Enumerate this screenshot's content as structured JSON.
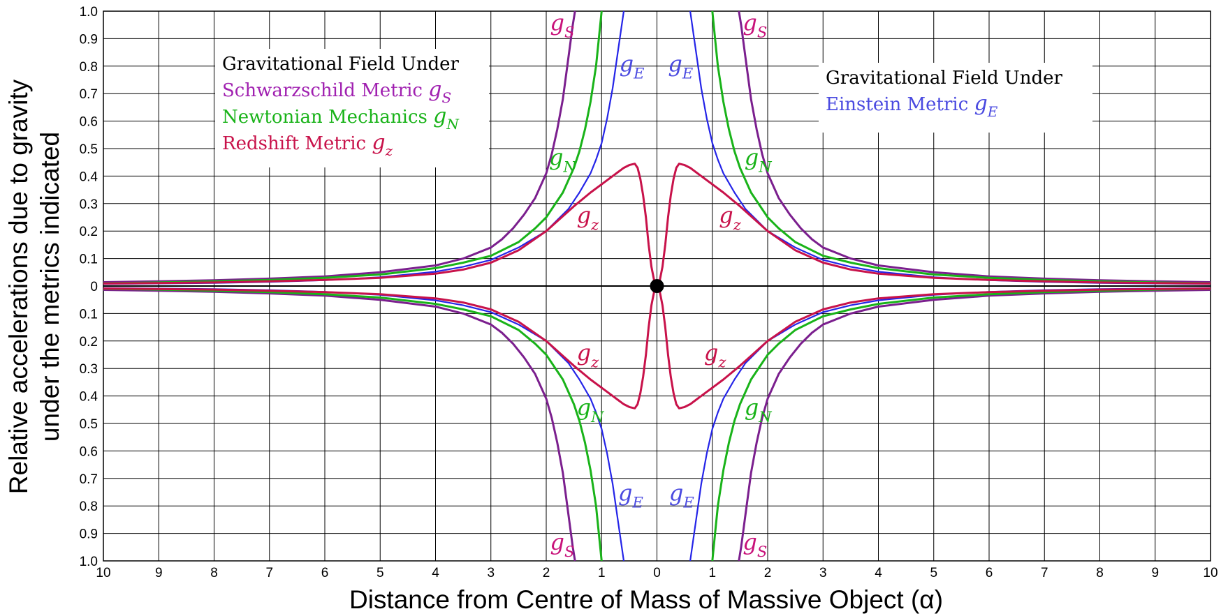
{
  "chart_data": {
    "type": "line",
    "title": "",
    "xlabel": "Distance from Centre of Mass of Massive Object (α)",
    "ylabel_lines": [
      "Relative accelerations due to gravity",
      "under the metrics indicated"
    ],
    "x_ticks": [
      "10",
      "9",
      "8",
      "7",
      "6",
      "5",
      "4",
      "3",
      "2",
      "1",
      "0",
      "1",
      "2",
      "3",
      "4",
      "5",
      "6",
      "7",
      "8",
      "9",
      "10"
    ],
    "y_ticks_upper": [
      "1.0",
      "0.9",
      "0.8",
      "0.7",
      "0.6",
      "0.5",
      "0.4",
      "0.3",
      "0.2",
      "0.1",
      "0"
    ],
    "y_ticks_lower": [
      "0.1",
      "0.2",
      "0.3",
      "0.4",
      "0.5",
      "0.6",
      "0.7",
      "0.8",
      "0.9",
      "1.0"
    ],
    "xlim": [
      -10,
      10
    ],
    "ylim": [
      -1.0,
      1.0
    ],
    "grid": true,
    "origin_marker": true,
    "colors": {
      "schwarzschild": "#7b1f8e",
      "newtonian": "#19b319",
      "einstein": "#2424e8",
      "redshift": "#c8124a"
    },
    "legend_left": {
      "heading": "Gravitational Field Under",
      "items": [
        {
          "text": "Schwarzschild Metric",
          "symbol": "g",
          "sub": "S",
          "color": "#a020b0"
        },
        {
          "text": "Newtonian Mechanics",
          "symbol": "g",
          "sub": "N",
          "color": "#19b319"
        },
        {
          "text": "Redshift Metric",
          "symbol": "g",
          "sub": "z",
          "color": "#c8124a"
        }
      ]
    },
    "legend_right": {
      "heading": "Gravitational Field Under",
      "items": [
        {
          "text": "Einstein Metric",
          "symbol": "g",
          "sub": "E",
          "color": "#4a4ae0"
        }
      ]
    },
    "curve_labels": [
      {
        "sym": "g",
        "sub": "S",
        "color": "#c8127a",
        "x": -1.93,
        "y": 0.93
      },
      {
        "sym": "g",
        "sub": "S",
        "color": "#c8127a",
        "x": 1.55,
        "y": 0.93
      },
      {
        "sym": "g",
        "sub": "E",
        "color": "#4a4ae0",
        "x": -0.68,
        "y": 0.78
      },
      {
        "sym": "g",
        "sub": "E",
        "color": "#4a4ae0",
        "x": 0.2,
        "y": 0.78
      },
      {
        "sym": "g",
        "sub": "N",
        "color": "#19b319",
        "x": -1.95,
        "y": 0.44
      },
      {
        "sym": "g",
        "sub": "N",
        "color": "#19b319",
        "x": 1.58,
        "y": 0.44
      },
      {
        "sym": "g",
        "sub": "z",
        "color": "#c8124a",
        "x": -1.45,
        "y": 0.23
      },
      {
        "sym": "g",
        "sub": "z",
        "color": "#c8124a",
        "x": 1.12,
        "y": 0.23
      },
      {
        "sym": "g",
        "sub": "z",
        "color": "#c8124a",
        "x": -1.45,
        "y": -0.27
      },
      {
        "sym": "g",
        "sub": "z",
        "color": "#c8124a",
        "x": 0.85,
        "y": -0.27
      },
      {
        "sym": "g",
        "sub": "N",
        "color": "#19b319",
        "x": -1.45,
        "y": -0.47
      },
      {
        "sym": "g",
        "sub": "N",
        "color": "#19b319",
        "x": 1.58,
        "y": -0.47
      },
      {
        "sym": "g",
        "sub": "E",
        "color": "#4a4ae0",
        "x": -0.7,
        "y": -0.78
      },
      {
        "sym": "g",
        "sub": "E",
        "color": "#4a4ae0",
        "x": 0.22,
        "y": -0.78
      },
      {
        "sym": "g",
        "sub": "S",
        "color": "#c8127a",
        "x": -1.93,
        "y": -0.96
      },
      {
        "sym": "g",
        "sub": "S",
        "color": "#c8127a",
        "x": 1.55,
        "y": -0.96
      }
    ],
    "series": [
      {
        "name": "Schwarzschild Metric gS",
        "key": "schwarzschild",
        "x": [
          1.48,
          1.52,
          1.6,
          1.7,
          1.8,
          1.9,
          2.0,
          2.2,
          2.4,
          2.6,
          2.8,
          3.0,
          3.5,
          4.0,
          5.0,
          6.0,
          7.0,
          8.0,
          9.0,
          10.0
        ],
        "y": [
          1.0,
          0.95,
          0.83,
          0.68,
          0.57,
          0.48,
          0.41,
          0.32,
          0.26,
          0.21,
          0.17,
          0.14,
          0.1,
          0.075,
          0.05,
          0.035,
          0.027,
          0.021,
          0.017,
          0.014
        ]
      },
      {
        "name": "Newtonian Mechanics gN",
        "key": "newtonian",
        "x": [
          1.0,
          1.05,
          1.1,
          1.2,
          1.3,
          1.4,
          1.5,
          1.7,
          2.0,
          2.2,
          2.5,
          3.0,
          3.5,
          4.0,
          5.0,
          6.0,
          7.0,
          8.0,
          9.0,
          10.0
        ],
        "y": [
          1.0,
          0.9,
          0.8,
          0.67,
          0.57,
          0.49,
          0.43,
          0.34,
          0.25,
          0.21,
          0.16,
          0.11,
          0.085,
          0.065,
          0.042,
          0.03,
          0.022,
          0.017,
          0.013,
          0.01
        ]
      },
      {
        "name": "Einstein Metric gE",
        "key": "einstein",
        "x": [
          0.6,
          0.7,
          0.8,
          0.9,
          1.0,
          1.1,
          1.2,
          1.4,
          1.6,
          1.8,
          2.0,
          2.5,
          3.0,
          3.5,
          4.0,
          5.0,
          6.0,
          7.0,
          8.0,
          10.0
        ],
        "y": [
          1.0,
          0.86,
          0.72,
          0.61,
          0.52,
          0.46,
          0.41,
          0.34,
          0.28,
          0.24,
          0.2,
          0.14,
          0.095,
          0.07,
          0.052,
          0.032,
          0.021,
          0.015,
          0.011,
          0.007
        ]
      },
      {
        "name": "Redshift Metric gz",
        "key": "redshift",
        "x": [
          0.0,
          0.05,
          0.1,
          0.15,
          0.2,
          0.25,
          0.3,
          0.35,
          0.4,
          0.5,
          0.6,
          0.7,
          0.8,
          1.0,
          1.2,
          1.5,
          2.0,
          2.5,
          3.0,
          3.5,
          4.0,
          5.0,
          6.0,
          7.0,
          8.0,
          9.0,
          10.0
        ],
        "y": [
          0.0,
          0.02,
          0.07,
          0.15,
          0.25,
          0.33,
          0.39,
          0.43,
          0.445,
          0.44,
          0.43,
          0.415,
          0.4,
          0.37,
          0.34,
          0.29,
          0.2,
          0.13,
          0.085,
          0.06,
          0.045,
          0.03,
          0.022,
          0.017,
          0.013,
          0.011,
          0.009
        ]
      }
    ]
  }
}
